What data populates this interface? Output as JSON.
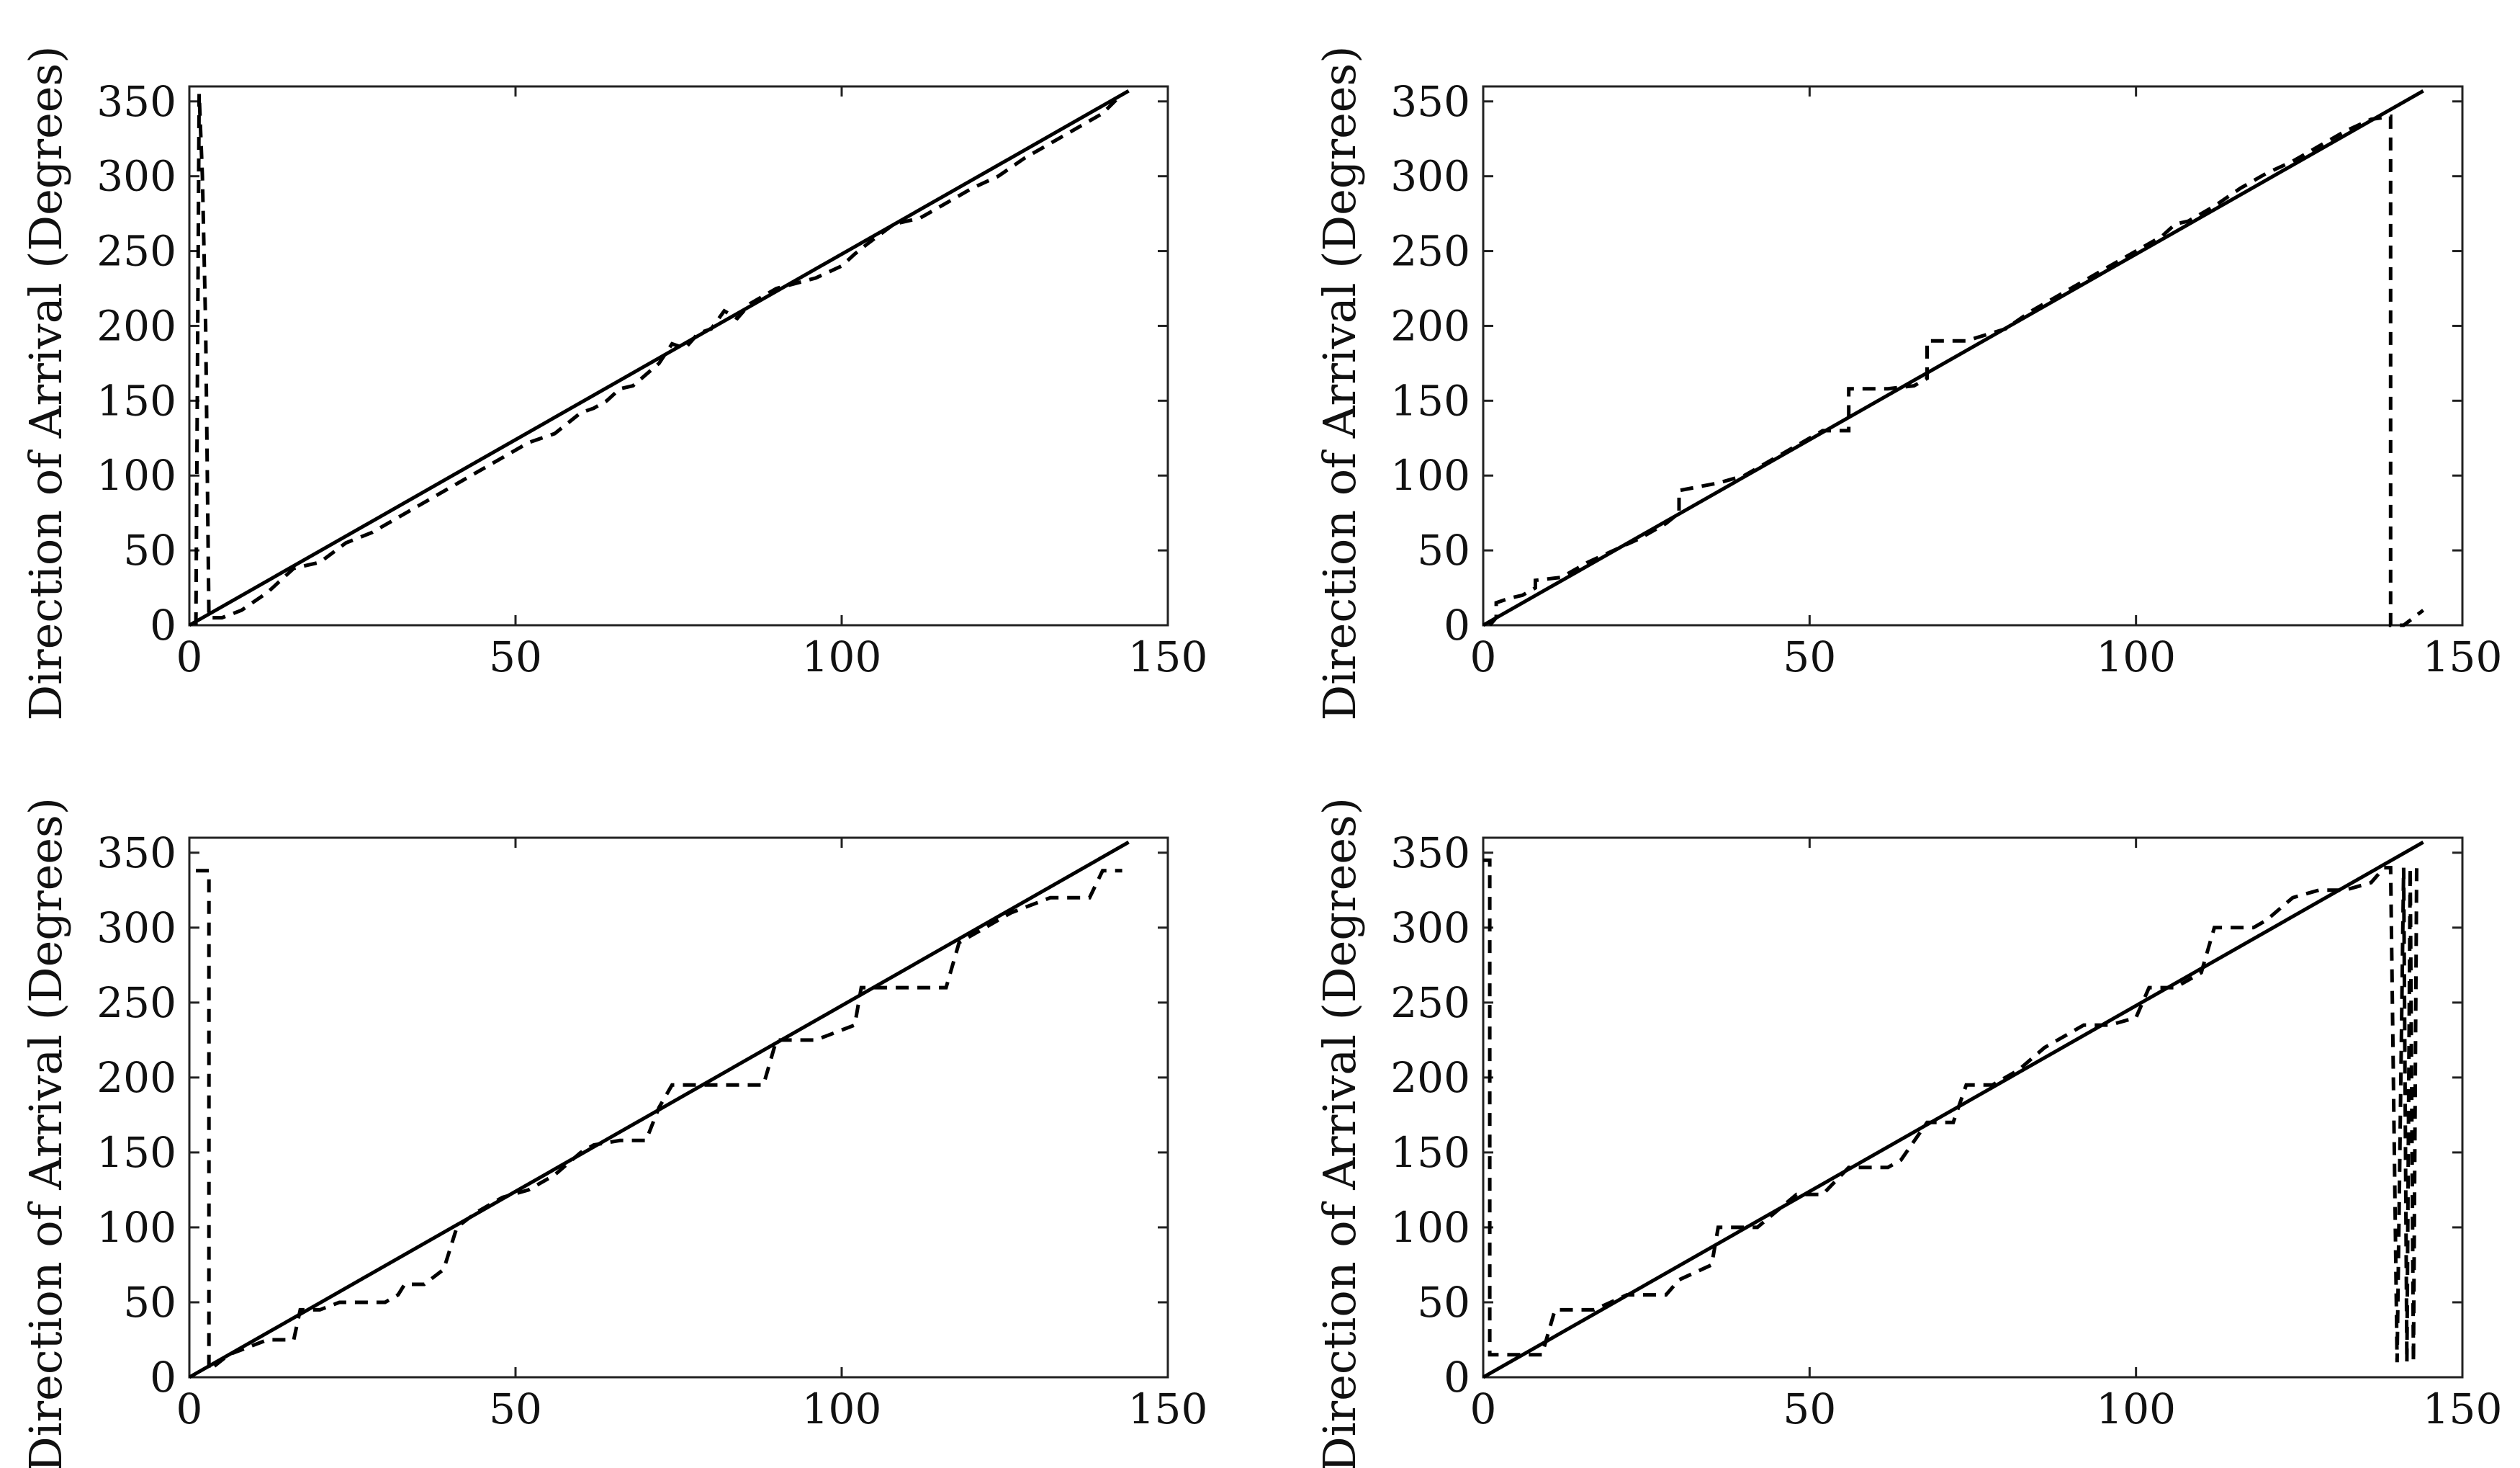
{
  "chart_data": [
    {
      "type": "line",
      "title": "",
      "xlabel": "",
      "ylabel": "Direction of Arrival (Degrees)",
      "xlim": [
        0,
        150
      ],
      "ylim": [
        0,
        360
      ],
      "xticks": [
        "0",
        "50",
        "100",
        "150"
      ],
      "yticks": [
        "0",
        "50",
        "100",
        "150",
        "200",
        "250",
        "300",
        "350"
      ],
      "grid": false,
      "series": [
        {
          "style": "solid",
          "x": [
            0,
            144
          ],
          "y": [
            0,
            357
          ]
        },
        {
          "style": "dashed",
          "x": [
            1,
            1.5,
            2,
            2.5,
            3,
            5,
            8,
            12,
            16,
            20,
            24,
            28,
            32,
            36,
            40,
            44,
            48,
            52,
            56,
            60,
            62,
            64,
            66,
            68,
            72,
            74,
            76,
            78,
            80,
            82,
            84,
            86,
            90,
            96,
            100,
            102,
            104,
            108,
            112,
            116,
            120,
            124,
            128,
            132,
            136,
            140,
            143
          ],
          "y": [
            0,
            355,
            300,
            200,
            5,
            5,
            10,
            22,
            38,
            42,
            55,
            62,
            72,
            82,
            92,
            102,
            112,
            122,
            128,
            142,
            145,
            150,
            158,
            160,
            175,
            188,
            185,
            195,
            198,
            210,
            205,
            215,
            225,
            232,
            240,
            248,
            255,
            268,
            272,
            282,
            292,
            300,
            312,
            322,
            332,
            342,
            355
          ]
        },
        {
          "style": "dashed",
          "x": [
            1,
            2,
            2,
            4,
            6,
            8,
            8,
            12,
            16,
            20,
            24,
            28,
            30,
            30,
            36,
            40,
            44,
            48,
            52,
            56,
            56,
            62,
            66,
            68,
            68,
            74,
            80,
            84,
            88,
            92,
            96,
            100,
            104,
            106,
            108,
            112,
            116,
            120,
            124,
            128,
            132,
            136,
            139,
            139,
            141,
            144
          ],
          "y": [
            0,
            5,
            15,
            18,
            20,
            25,
            30,
            32,
            42,
            50,
            58,
            68,
            75,
            90,
            95,
            100,
            110,
            120,
            130,
            130,
            158,
            158,
            160,
            165,
            190,
            190,
            198,
            210,
            220,
            230,
            240,
            250,
            260,
            268,
            270,
            280,
            292,
            302,
            310,
            320,
            330,
            338,
            340,
            0,
            0,
            10
          ]
        },
        {
          "style": "dashed",
          "x": [
            1,
            3,
            3,
            4,
            6,
            9,
            12,
            16,
            17,
            20,
            23,
            26,
            30,
            32,
            33,
            36,
            39,
            41,
            44,
            48,
            52,
            56,
            60,
            62,
            66,
            70,
            72,
            74,
            80,
            88,
            90,
            96,
            102,
            103,
            108,
            116,
            118,
            122,
            126,
            132,
            138,
            140,
            143
          ],
          "y": [
            338,
            338,
            5,
            8,
            15,
            20,
            25,
            25,
            45,
            45,
            50,
            50,
            50,
            55,
            62,
            62,
            72,
            100,
            110,
            120,
            125,
            135,
            150,
            155,
            158,
            158,
            180,
            195,
            195,
            195,
            225,
            225,
            235,
            260,
            260,
            260,
            290,
            300,
            310,
            320,
            320,
            338,
            338
          ]
        },
        {
          "style": "dashed",
          "x": [
            0,
            1,
            1,
            5,
            9,
            11,
            17,
            22,
            28,
            30,
            35,
            36,
            42,
            48,
            52,
            56,
            62,
            64,
            68,
            72,
            74,
            78,
            82,
            86,
            92,
            96,
            100,
            102,
            106,
            110,
            112,
            118,
            120,
            124,
            128,
            132,
            136,
            138,
            139,
            140,
            141,
            141.5,
            142,
            142.5,
            143
          ],
          "y": [
            345,
            345,
            15,
            15,
            15,
            45,
            45,
            55,
            55,
            65,
            75,
            100,
            100,
            122,
            122,
            140,
            140,
            145,
            170,
            170,
            195,
            195,
            205,
            220,
            235,
            235,
            240,
            260,
            260,
            270,
            300,
            300,
            305,
            320,
            325,
            325,
            330,
            340,
            340,
            10,
            340,
            10,
            340,
            10,
            340
          ]
        }
      ]
    },
    {
      "type": "line",
      "title": "",
      "xlabel": "",
      "ylabel": "Direction of Arrival (Degrees)",
      "xlim": [
        0,
        150
      ],
      "ylim": [
        0,
        360
      ],
      "xticks": [
        "0",
        "50",
        "100",
        "150"
      ],
      "yticks": [
        "0",
        "50",
        "100",
        "150",
        "200",
        "250",
        "300",
        "350"
      ],
      "grid": false
    },
    {
      "type": "line",
      "title": "",
      "xlabel": "",
      "ylabel": "Direction of Arrival (Degrees)",
      "xlim": [
        0,
        150
      ],
      "ylim": [
        0,
        360
      ],
      "xticks": [
        "0",
        "50",
        "100",
        "150"
      ],
      "yticks": [
        "0",
        "50",
        "100",
        "150",
        "200",
        "250",
        "300",
        "350"
      ],
      "grid": false
    },
    {
      "type": "line",
      "title": "",
      "xlabel": "",
      "ylabel": "Direction of Arrival (Degrees)",
      "xlim": [
        0,
        150
      ],
      "ylim": [
        0,
        360
      ],
      "xticks": [
        "0",
        "50",
        "100",
        "150"
      ],
      "yticks": [
        "0",
        "50",
        "100",
        "150",
        "200",
        "250",
        "300",
        "350"
      ],
      "grid": false
    }
  ]
}
